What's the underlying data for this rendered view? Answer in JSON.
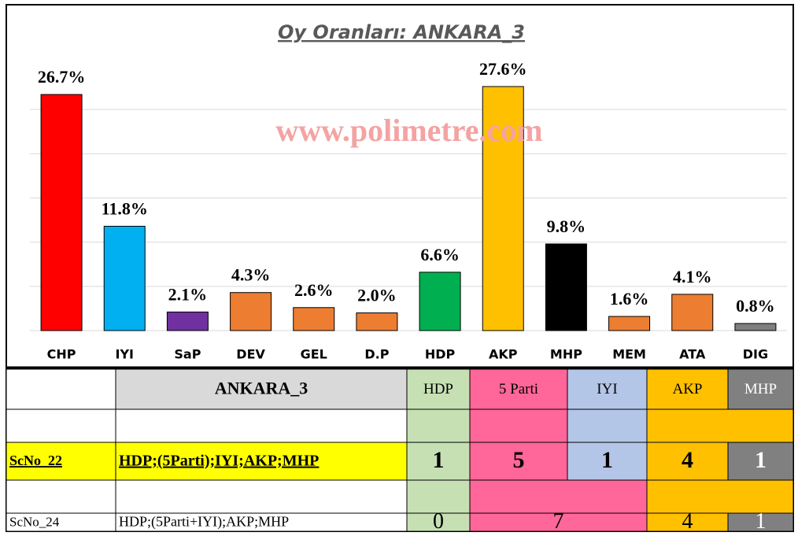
{
  "chart_data": {
    "type": "bar",
    "title": "Oy Oranları: ANKARA_3",
    "watermark": "www.polimetre.com",
    "categories": [
      "CHP",
      "IYI",
      "SaP",
      "DEV",
      "GEL",
      "D.P",
      "HDP",
      "AKP",
      "MHP",
      "MEM",
      "ATA",
      "DIG"
    ],
    "values": [
      26.7,
      11.8,
      2.1,
      4.3,
      2.6,
      2.0,
      6.6,
      27.6,
      9.8,
      1.6,
      4.1,
      0.8
    ],
    "value_labels": [
      "26.7%",
      "11.8%",
      "2.1%",
      "4.3%",
      "2.6%",
      "2.0%",
      "6.6%",
      "27.6%",
      "9.8%",
      "1.6%",
      "4.1%",
      "0.8%"
    ],
    "colors": [
      "#ff0000",
      "#00b0f0",
      "#7030a0",
      "#ed7d31",
      "#ed7d31",
      "#ed7d31",
      "#00b050",
      "#ffc000",
      "#000000",
      "#ed7d31",
      "#ed7d31",
      "#808080"
    ],
    "ylim": [
      0,
      30
    ],
    "yticks": [
      0,
      5,
      10,
      15,
      20,
      25
    ],
    "grid": true
  },
  "table": {
    "header": [
      "ANKARA_3",
      "HDP",
      "5 Parti",
      "IYI",
      "AKP",
      "MHP"
    ],
    "header_colors": [
      "#d9d9d9",
      "#c6e0b4",
      "#ff6699",
      "#b4c6e7",
      "#ffc000",
      "#808080"
    ],
    "rows": [
      {
        "id": "ScNo_22",
        "combo": "HDP;(5Parti);IYI;AKP;MHP",
        "seats": [
          1,
          5,
          1,
          4,
          1
        ]
      },
      {
        "id": "ScNo_24",
        "combo": "HDP;(5Parti+IYI);AKP;MHP",
        "seats": [
          0,
          7,
          4,
          1
        ]
      }
    ]
  }
}
